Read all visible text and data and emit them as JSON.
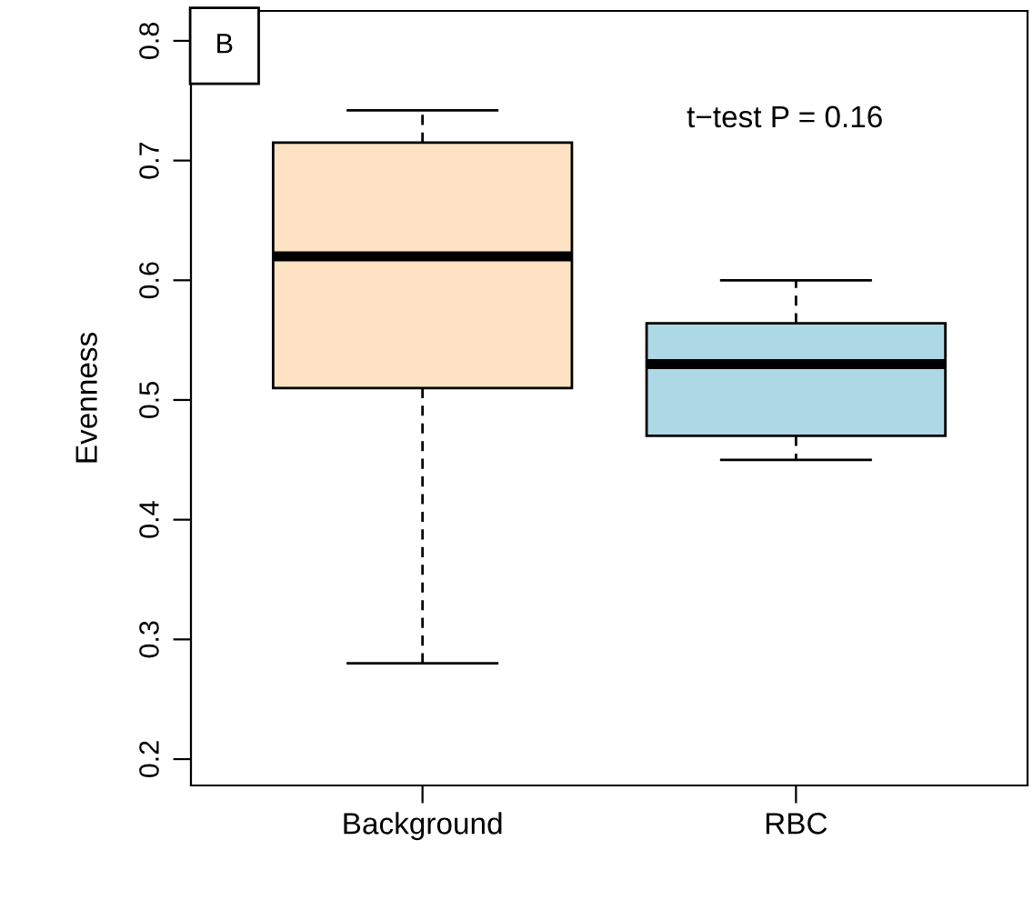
{
  "chart_data": {
    "type": "box",
    "ylabel": "Evenness",
    "categories": [
      "Background",
      "RBC"
    ],
    "boxes": [
      {
        "low": 0.28,
        "q1": 0.51,
        "median": 0.62,
        "q3": 0.715,
        "high": 0.742
      },
      {
        "low": 0.45,
        "q1": 0.47,
        "median": 0.53,
        "q3": 0.564,
        "high": 0.6
      }
    ],
    "colors": [
      "#fde2c4",
      "#add8e6"
    ],
    "ylim": [
      0.178,
      0.825
    ],
    "yticks": [
      0.2,
      0.3,
      0.4,
      0.5,
      0.6,
      0.7,
      0.8
    ],
    "annotations": [
      "B",
      "t−test P = 0.16"
    ],
    "grid": false,
    "legend": false
  }
}
